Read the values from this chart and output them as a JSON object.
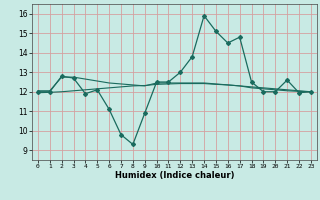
{
  "title": "",
  "xlabel": "Humidex (Indice chaleur)",
  "ylabel": "",
  "background_color": "#c8eae4",
  "grid_color": "#d4a0a0",
  "line_color": "#1a6b5e",
  "xlim": [
    -0.5,
    23.5
  ],
  "ylim": [
    8.5,
    16.5
  ],
  "yticks": [
    9,
    10,
    11,
    12,
    13,
    14,
    15,
    16
  ],
  "xticks": [
    0,
    1,
    2,
    3,
    4,
    5,
    6,
    7,
    8,
    9,
    10,
    11,
    12,
    13,
    14,
    15,
    16,
    17,
    18,
    19,
    20,
    21,
    22,
    23
  ],
  "line1_x": [
    0,
    1,
    2,
    3,
    4,
    5,
    6,
    7,
    8,
    9,
    10,
    11,
    12,
    13,
    14,
    15,
    16,
    17,
    18,
    19,
    20,
    21,
    22,
    23
  ],
  "line1_y": [
    12.0,
    12.0,
    12.8,
    12.7,
    11.9,
    12.1,
    11.1,
    9.8,
    9.3,
    10.9,
    12.5,
    12.5,
    13.0,
    13.8,
    15.9,
    15.1,
    14.5,
    14.8,
    12.5,
    12.0,
    12.0,
    12.6,
    11.95,
    12.0
  ],
  "line2_x": [
    0,
    1,
    2,
    3,
    4,
    5,
    6,
    7,
    8,
    9,
    10,
    11,
    12,
    13,
    14,
    15,
    16,
    17,
    18,
    19,
    20,
    21,
    22,
    23
  ],
  "line2_y": [
    12.05,
    12.05,
    12.75,
    12.75,
    12.65,
    12.55,
    12.45,
    12.4,
    12.35,
    12.3,
    12.45,
    12.45,
    12.45,
    12.45,
    12.45,
    12.4,
    12.35,
    12.3,
    12.25,
    12.2,
    12.15,
    12.1,
    12.05,
    12.0
  ],
  "line3_x": [
    0,
    1,
    2,
    3,
    4,
    5,
    6,
    7,
    8,
    9,
    10,
    11,
    12,
    13,
    14,
    15,
    16,
    17,
    18,
    19,
    20,
    21,
    22,
    23
  ],
  "line3_y": [
    11.95,
    11.97,
    12.0,
    12.05,
    12.1,
    12.15,
    12.2,
    12.25,
    12.3,
    12.32,
    12.38,
    12.4,
    12.42,
    12.42,
    12.42,
    12.38,
    12.35,
    12.3,
    12.2,
    12.15,
    12.1,
    12.05,
    12.02,
    12.0
  ]
}
